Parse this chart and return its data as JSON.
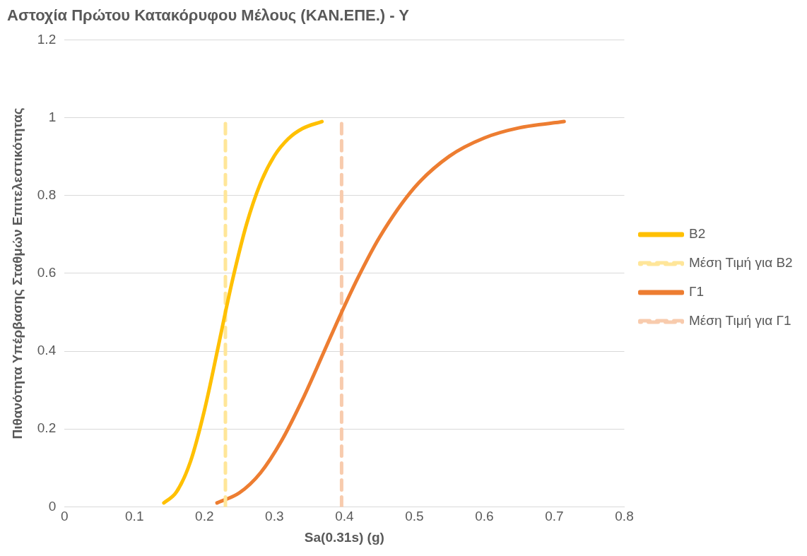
{
  "chart_data": {
    "type": "line",
    "title": "Αστοχία Πρώτου Κατακόρυφου Μέλους (ΚΑΝ.ΕΠΕ.) - Υ",
    "xlabel": "Sa(0.31s) (g)",
    "ylabel": "Πιθανότητα Υπέρβασης Σταθμών Επιτελεστικότητας",
    "xlim": [
      0,
      0.8
    ],
    "xticks": [
      0,
      0.1,
      0.2,
      0.3,
      0.4,
      0.5,
      0.6,
      0.7,
      0.8
    ],
    "ylim": [
      0,
      1.2
    ],
    "yticks": [
      0,
      0.2,
      0.4,
      0.6,
      0.8,
      1,
      1.2
    ],
    "grid": "y",
    "legend": "right",
    "series": [
      {
        "name": "Β2",
        "color": "#ffc000",
        "line_style": "solid",
        "x": [
          0.142,
          0.16,
          0.18,
          0.2,
          0.22,
          0.23,
          0.24,
          0.26,
          0.28,
          0.3,
          0.32,
          0.34,
          0.368
        ],
        "values": [
          0.01,
          0.038,
          0.116,
          0.248,
          0.414,
          0.5,
          0.582,
          0.725,
          0.831,
          0.902,
          0.946,
          0.972,
          0.99
        ]
      },
      {
        "name": "Μέση Τιμή για Β2",
        "color": "#ffe699",
        "line_style": "dashed",
        "x": [
          0.23,
          0.23
        ],
        "values": [
          0,
          1
        ]
      },
      {
        "name": "Γ1",
        "color": "#ed7d31",
        "line_style": "solid",
        "x": [
          0.218,
          0.25,
          0.28,
          0.31,
          0.34,
          0.37,
          0.396,
          0.42,
          0.45,
          0.5,
          0.55,
          0.6,
          0.65,
          0.714
        ],
        "values": [
          0.01,
          0.036,
          0.087,
          0.169,
          0.275,
          0.395,
          0.5,
          0.591,
          0.692,
          0.82,
          0.901,
          0.948,
          0.974,
          0.99
        ]
      },
      {
        "name": "Μέση Τιμή για Γ1",
        "color": "#f8cbad",
        "line_style": "dashed",
        "x": [
          0.396,
          0.396
        ],
        "values": [
          0,
          1
        ]
      }
    ]
  }
}
